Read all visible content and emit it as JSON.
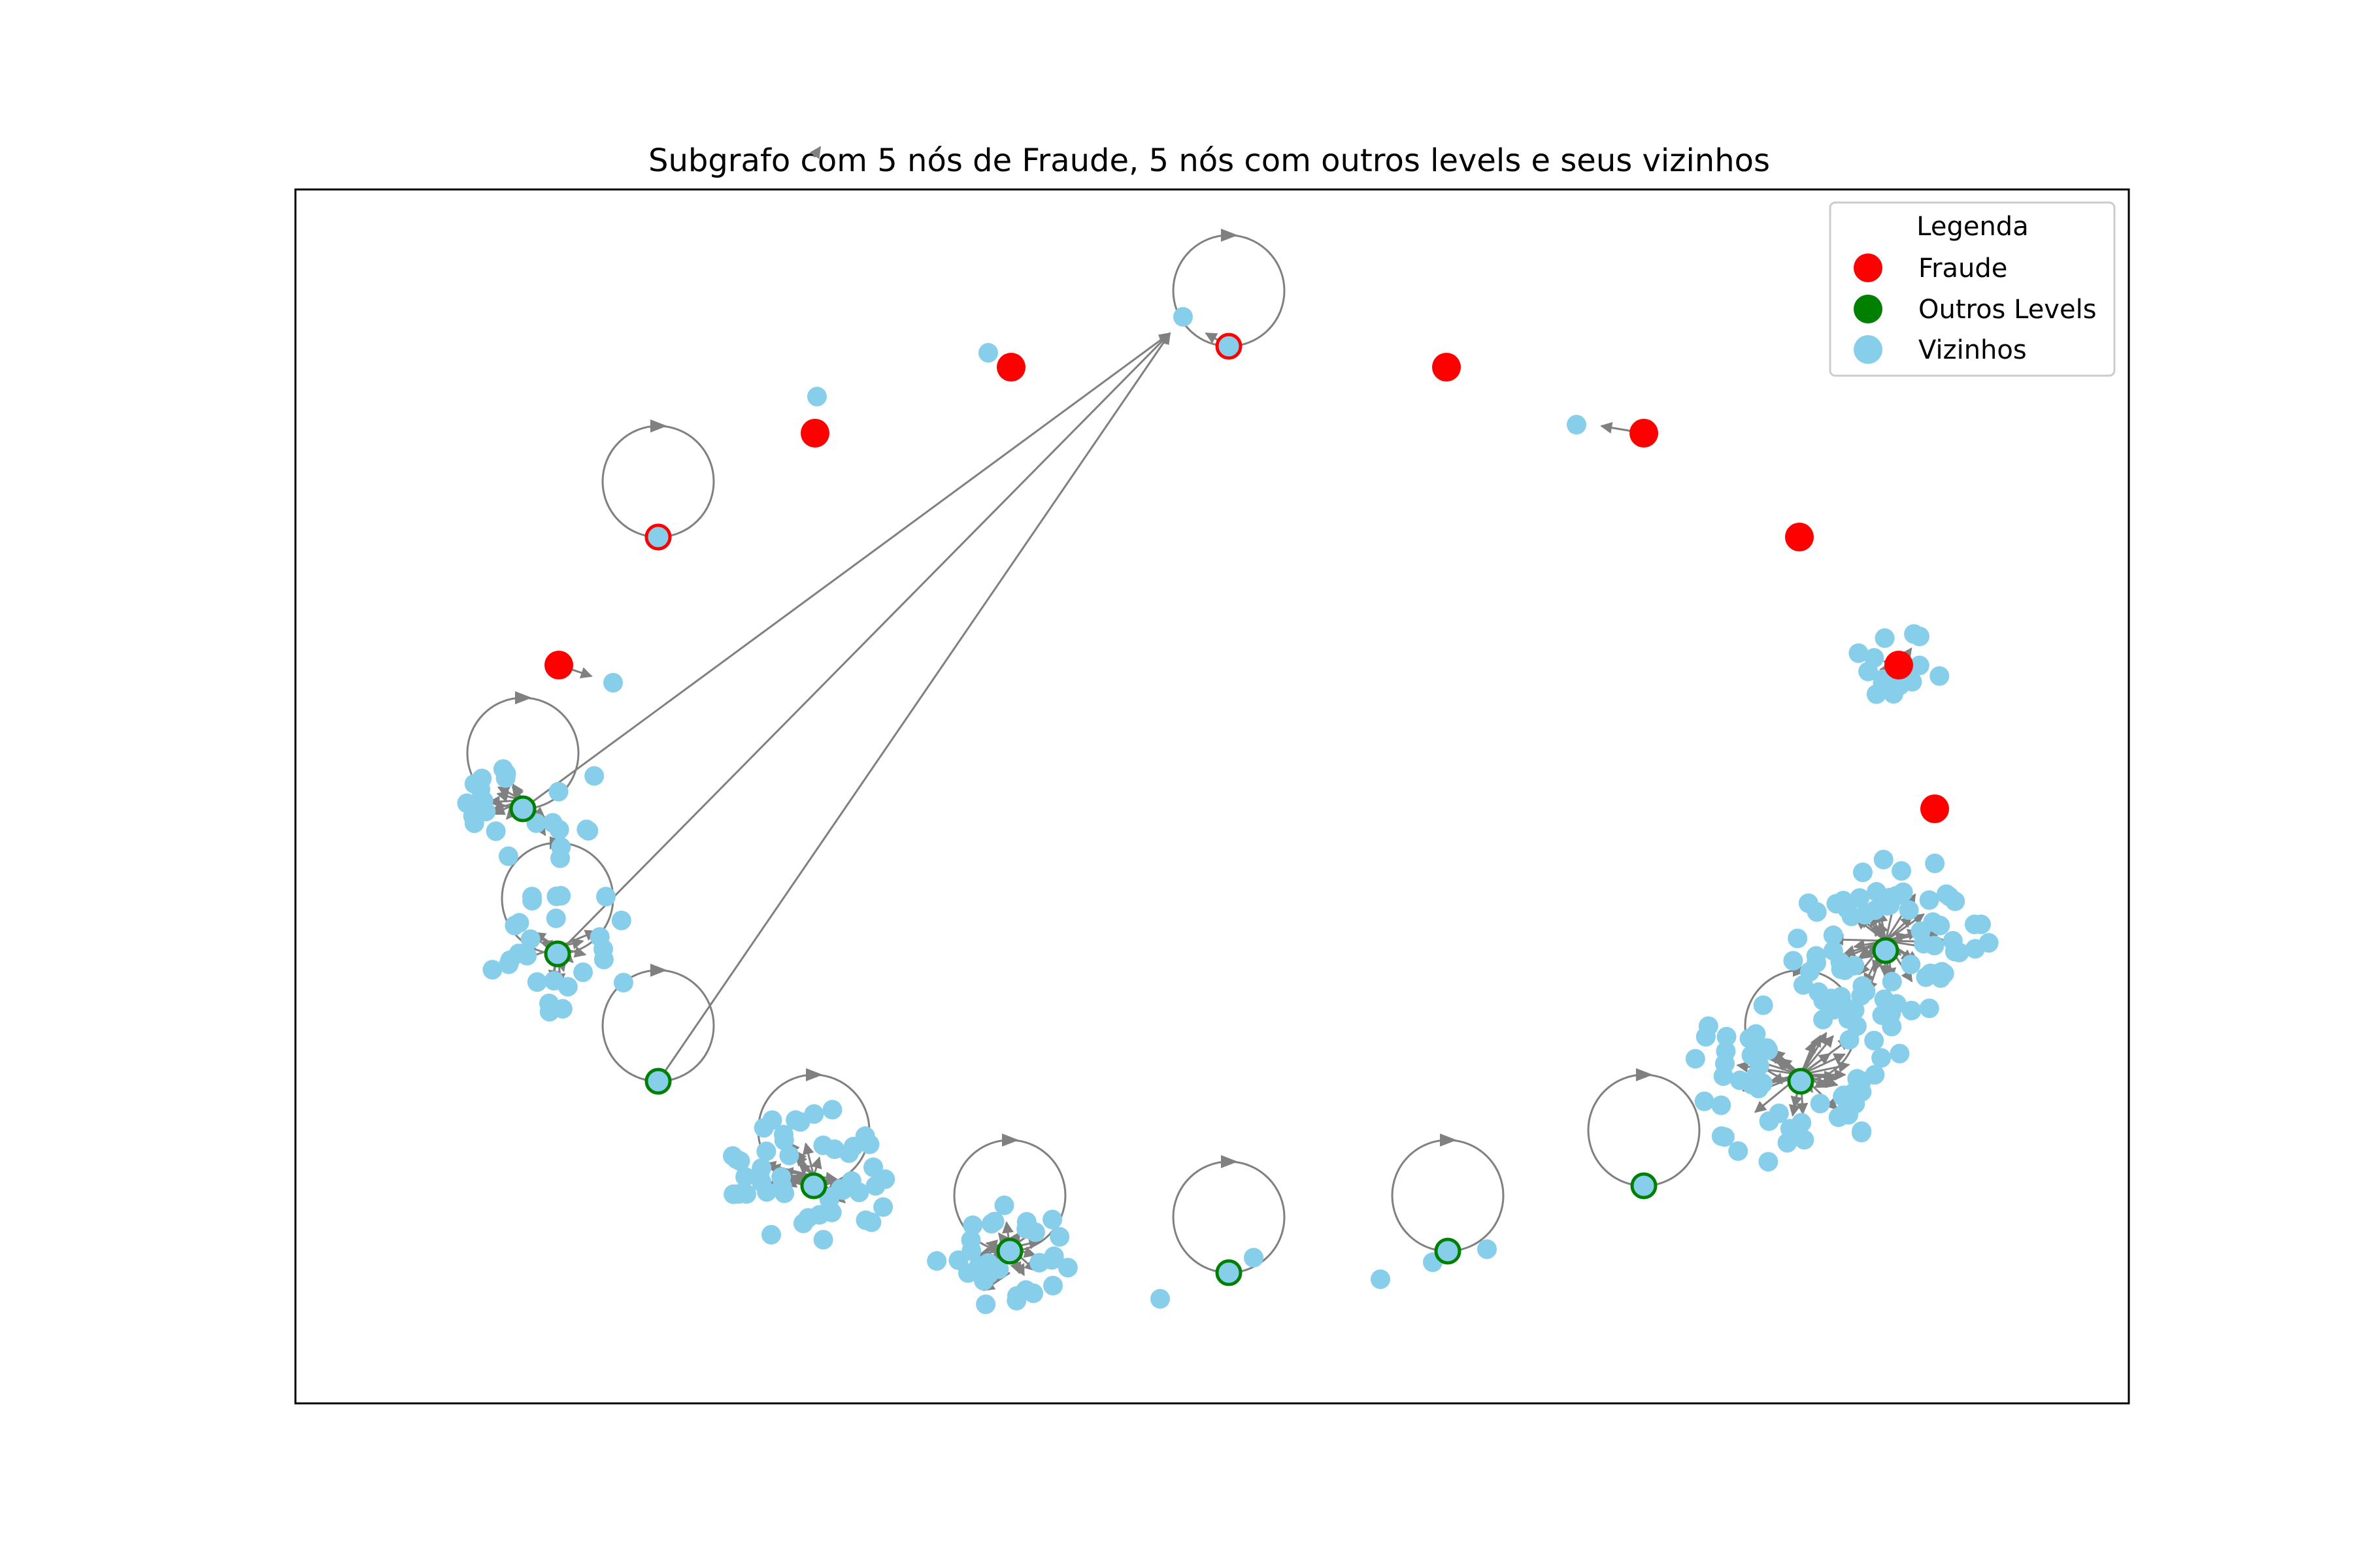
{
  "title": "Subgrafo com 5 nós de Fraude, 5 nós com outros levels e seus vizinhos",
  "legend": {
    "title": "Legenda",
    "items": [
      {
        "label": "Fraude",
        "color": "#ff0000"
      },
      {
        "label": "Outros Levels",
        "color": "#008000"
      },
      {
        "label": "Vizinhos",
        "color": "#87ceeb"
      }
    ]
  },
  "colors": {
    "fraude": "#ff0000",
    "outros": "#008000",
    "vizinhos": "#87ceeb",
    "edge": "#808080",
    "frame": "#000000"
  }
}
